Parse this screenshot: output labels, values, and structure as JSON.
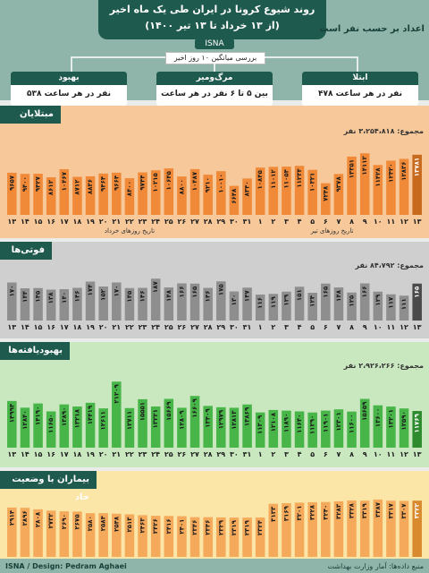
{
  "header": {
    "title_line1": "روند شیوع کرونا در ایران طی یک ماه اخیر",
    "title_line2": "(از ۱۳ خرداد تا ۱۳ تیر ۱۴۰۰)",
    "isna": "ISNA",
    "subtitle": "اعداد بر حسب نفر است",
    "mid_caption": "بررسی میانگین ۱۰ روز اخیر",
    "cards": [
      {
        "title": "ابتلا",
        "body": "۴۷۸ نفر در هر ساعت"
      },
      {
        "title": "مرگ‌ومیر",
        "body": "بین ۵ تا ۶ نفر در هر ساعت"
      },
      {
        "title": "بهبود",
        "body": "۵۳۸ نفر در هر ساعت"
      }
    ]
  },
  "colors": {
    "dark": "#1f5a4e",
    "orange": "#f08a38",
    "grey": "#8e8e8e",
    "green": "#48b548",
    "light_orange": "#f4a95b",
    "bar_text": "#1b1b1b"
  },
  "watermark": "ISNA",
  "days": [
    "۱۳",
    "۱۴",
    "۱۵",
    "۱۶",
    "۱۷",
    "۱۸",
    "۱۹",
    "۲۰",
    "۲۱",
    "۲۲",
    "۲۳",
    "۲۴",
    "۲۵",
    "۲۶",
    "۲۷",
    "۲۸",
    "۲۹",
    "۳۰",
    "۳۱",
    "۱",
    "۲",
    "۳",
    "۴",
    "۵",
    "۶",
    "۷",
    "۸",
    "۹",
    "۱۰",
    "۱۱",
    "۱۲",
    "۱۳"
  ],
  "axis_labels": {
    "khordad": "تاریخ روزهای خرداد",
    "tir": "تاریخ روزهای تیر"
  },
  "sections": {
    "cases": {
      "title": "مبتلایان",
      "total": "مجموع: ۳،۲۵۴،۸۱۸ نفر"
    },
    "deaths": {
      "title": "فوتی‌ها",
      "total": "مجموع: ۸۴،۷۹۲ نفر"
    },
    "recovered": {
      "title": "بهبودیافته‌ها",
      "total": "مجموع: ۲،۹۲۶،۲۶۶ نفر"
    },
    "severe": {
      "title": "بیماران با وضعیت حاد"
    }
  },
  "footer": {
    "source": "منبع داده‌ها: آمار وزارت بهداشت",
    "credit": "ISNA / Design: Pedram Aghaei"
  },
  "chart_data": [
    {
      "type": "bar",
      "title": "مبتلایان",
      "categories": [
        "13",
        "14",
        "15",
        "16",
        "17",
        "18",
        "19",
        "20",
        "21",
        "22",
        "23",
        "24",
        "25",
        "26",
        "27",
        "28",
        "29",
        "30",
        "31",
        "1",
        "2",
        "3",
        "4",
        "5",
        "6",
        "7",
        "8",
        "9",
        "10",
        "11",
        "12",
        "13"
      ],
      "values": [
        9657,
        9400,
        9427,
        8612,
        10467,
        8712,
        8836,
        9464,
        9664,
        8400,
        9744,
        10215,
        10645,
        8800,
        10487,
        9210,
        10010,
        6648,
        8340,
        10845,
        11012,
        11054,
        11234,
        10321,
        7248,
        9378,
        13351,
        14112,
        11428,
        12420,
        12836,
        13781
      ],
      "labels": [
        "۹۶۵۷",
        "۹۴۰۰",
        "۹۴۲۷",
        "۸۶۱۲",
        "۱۰۴۶۷",
        "۸۷۱۲",
        "۸۸۳۶",
        "۹۴۶۴",
        "۹۶۶۴",
        "۸۴۰۰",
        "۹۷۴۴",
        "۱۰۲۱۵",
        "۱۰۶۴۵",
        "۸۸۰۰",
        "۱۰۴۸۷",
        "۹۲۱۰",
        "۱۰۰۱۰",
        "۶۶۴۸",
        "۸۳۴۰",
        "۱۰۸۴۵",
        "۱۱۰۱۲",
        "۱۱۰۵۴",
        "۱۱۲۳۴",
        "۱۰۳۲۱",
        "۷۲۴۸",
        "۹۳۷۸",
        "۱۳۳۵۱",
        "۱۴۱۱۲",
        "۱۱۴۲۸",
        "۱۲۴۲۰",
        "۱۲۸۳۶",
        "۱۳۷۸۱"
      ],
      "ylim": [
        0,
        16000
      ]
    },
    {
      "type": "bar",
      "title": "فوتی‌ها",
      "categories": [
        "13",
        "14",
        "15",
        "16",
        "17",
        "18",
        "19",
        "20",
        "21",
        "22",
        "23",
        "24",
        "25",
        "26",
        "27",
        "28",
        "29",
        "30",
        "31",
        "1",
        "2",
        "3",
        "4",
        "5",
        "6",
        "7",
        "8",
        "9",
        "10",
        "11",
        "12",
        "13"
      ],
      "values": [
        170,
        144,
        145,
        138,
        140,
        146,
        174,
        152,
        170,
        145,
        146,
        187,
        148,
        166,
        165,
        146,
        175,
        130,
        147,
        116,
        119,
        129,
        151,
        124,
        165,
        148,
        125,
        166,
        129,
        117,
        111,
        165
      ],
      "labels": [
        "۱۷۰",
        "۱۴۴",
        "۱۴۵",
        "۱۳۸",
        "۱۴۰",
        "۱۴۶",
        "۱۷۴",
        "۱۵۲",
        "۱۷۰",
        "۱۴۵",
        "۱۴۶",
        "۱۸۷",
        "۱۴۸",
        "۱۶۶",
        "۱۶۵",
        "۱۴۶",
        "۱۷۵",
        "۱۳۰",
        "۱۴۷",
        "۱۱۶",
        "۱۱۹",
        "۱۲۹",
        "۱۵۱",
        "۱۲۴",
        "۱۶۵",
        "۱۴۸",
        "۱۲۵",
        "۱۶۶",
        "۱۲۹",
        "۱۱۷",
        "۱۱۱",
        "۱۶۵"
      ],
      "ylim": [
        0,
        200
      ]
    },
    {
      "type": "bar",
      "title": "بهبودیافته‌ها",
      "categories": [
        "13",
        "14",
        "15",
        "16",
        "17",
        "18",
        "19",
        "20",
        "21",
        "22",
        "23",
        "24",
        "25",
        "26",
        "27",
        "28",
        "29",
        "30",
        "31",
        "1",
        "2",
        "3",
        "4",
        "5",
        "6",
        "7",
        "8",
        "9",
        "10",
        "11",
        "12",
        "13"
      ],
      "values": [
        14994,
        12840,
        14190,
        11650,
        13890,
        13218,
        14419,
        12611,
        21209,
        12711,
        15551,
        13221,
        15669,
        12809,
        16609,
        13409,
        12979,
        12813,
        13869,
        11309,
        12108,
        11890,
        11640,
        11290,
        11901,
        12301,
        11600,
        15659,
        13600,
        13201,
        12590,
        11769
      ],
      "labels": [
        "۱۴۹۹۴",
        "۱۲۸۴۰",
        "۱۴۱۹۰",
        "۱۱۶۵۰",
        "۱۳۸۹۰",
        "۱۳۲۱۸",
        "۱۴۴۱۹",
        "۱۲۶۱۱",
        "۲۱۲۰۹",
        "۱۲۷۱۱",
        "۱۵۵۵۱",
        "۱۳۲۲۱",
        "۱۵۶۶۹",
        "۱۲۸۰۹",
        "۱۶۶۰۹",
        "۱۳۴۰۹",
        "۱۲۹۷۹",
        "۱۲۸۱۳",
        "۱۳۸۶۹",
        "۱۱۳۰۹",
        "۱۲۱۰۸",
        "۱۱۸۹۰",
        "۱۱۶۴۰",
        "۱۱۲۹۰",
        "۱۱۹۰۱",
        "۱۲۳۰۱",
        "۱۱۶۰۰",
        "۱۵۶۵۹",
        "۱۳۶۰۰",
        "۱۳۲۰۱",
        "۱۲۵۹۰",
        "۱۱۷۶۹"
      ],
      "ylim": [
        0,
        23000
      ]
    },
    {
      "type": "bar",
      "title": "بیماران با وضعیت حاد",
      "categories": [
        "13",
        "14",
        "15",
        "16",
        "17",
        "18",
        "19",
        "20",
        "21",
        "22",
        "23",
        "24",
        "25",
        "26",
        "27",
        "28",
        "29",
        "30",
        "31",
        "1",
        "2",
        "3",
        "4",
        "5",
        "6",
        "7",
        "8",
        "9",
        "10",
        "11",
        "12",
        "13"
      ],
      "values": [
        2914,
        2896,
        2808,
        2732,
        2690,
        2675,
        2580,
        2584,
        2548,
        2513,
        2463,
        2426,
        2416,
        2401,
        2346,
        2346,
        2329,
        2319,
        2319,
        2324,
        3133,
        3169,
        3201,
        3228,
        3240,
        3283,
        3328,
        3319,
        3387,
        3317,
        3307,
        3322
      ],
      "labels": [
        "۲۹۱۴",
        "۲۸۹۶",
        "۲۸۰۸",
        "۲۷۳۲",
        "۲۶۹۰",
        "۲۶۷۵",
        "۲۵۸۰",
        "۲۵۸۴",
        "۲۵۴۸",
        "۲۵۱۳",
        "۲۴۶۳",
        "۲۴۲۶",
        "۲۴۱۶",
        "۲۴۰۱",
        "۲۳۴۶",
        "۲۳۴۶",
        "۲۳۲۹",
        "۲۳۱۹",
        "۲۳۱۹",
        "۲۳۲۴",
        "۳۱۳۳",
        "۳۱۶۹",
        "۳۲۰۱",
        "۳۲۲۸",
        "۳۲۴۰",
        "۳۲۸۳",
        "۳۳۲۸",
        "۳۳۱۹",
        "۳۳۸۷",
        "۳۳۱۷",
        "۳۳۰۷",
        "۳۳۲۲"
      ],
      "ylim": [
        0,
        3700
      ]
    }
  ]
}
